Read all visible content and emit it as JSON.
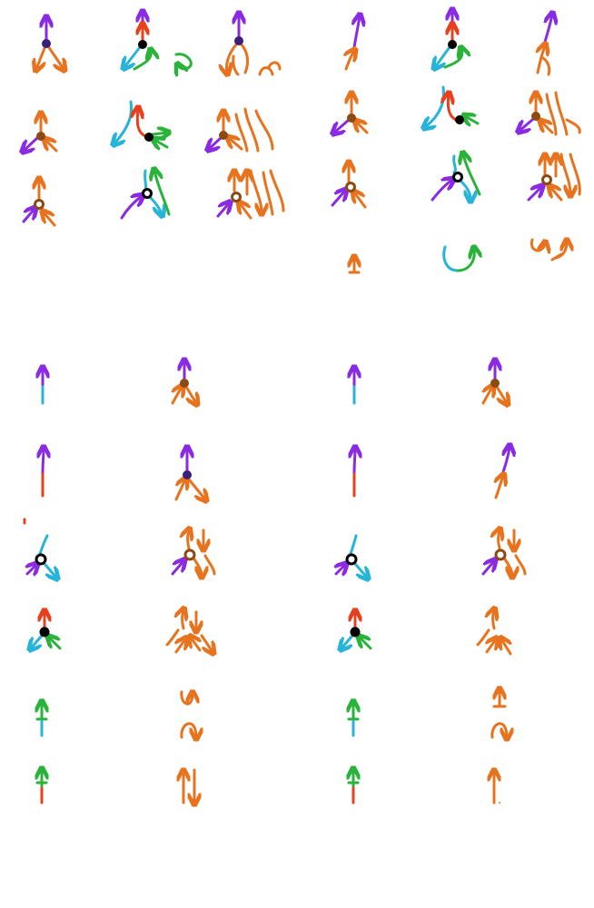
{
  "palette": {
    "purple": "#8a2be2",
    "orange": "#e8731e",
    "red": "#e8401c",
    "cyan": "#27b4d8",
    "green": "#2ab33a",
    "black": "#000000",
    "brown": "#8b4a12",
    "navy": "#3a1f7a"
  },
  "legend": {
    "fermion": "orange",
    "photon": "purple",
    "electron": "cyan",
    "positron": "red",
    "neutrino": "green",
    "vertex_types": [
      "black-dot",
      "brown-dot",
      "navy-dot",
      "ring"
    ]
  }
}
